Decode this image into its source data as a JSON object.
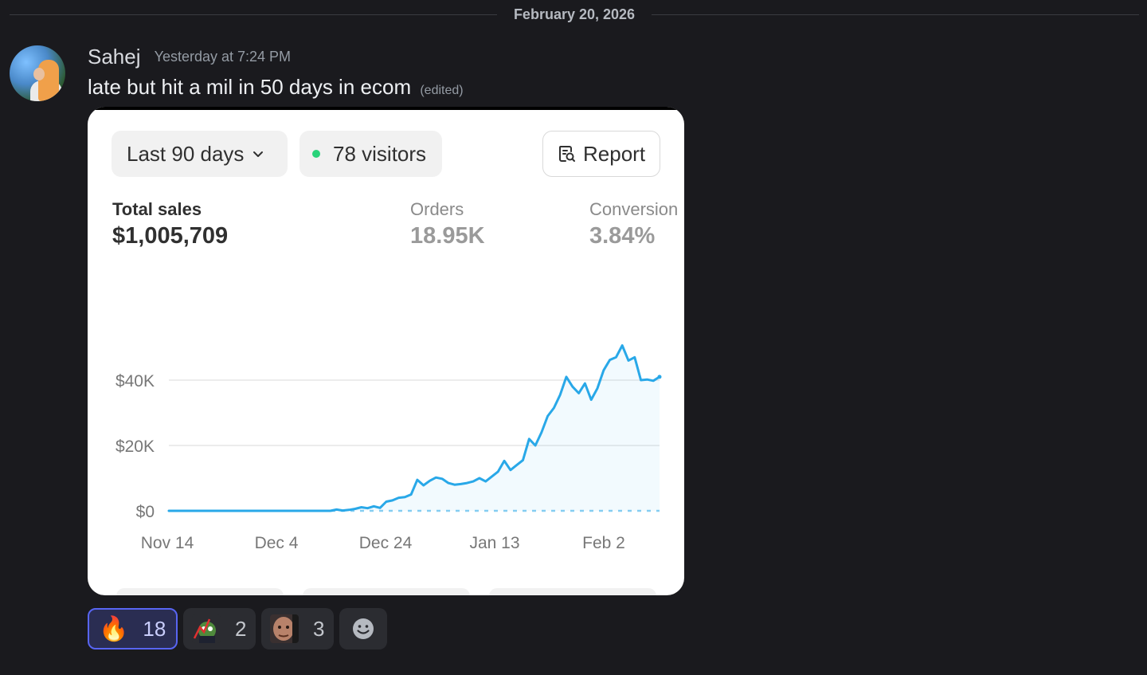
{
  "date_divider": "February 20, 2026",
  "message": {
    "author": "Sahej",
    "timestamp": "Yesterday at 7:24 PM",
    "text": "late but hit a mil in 50 days in ecom",
    "edited_label": "(edited)"
  },
  "dashboard": {
    "range_label": "Last 90 days",
    "visitors_label": "78 visitors",
    "report_label": "Report",
    "metrics": [
      {
        "label": "Total sales",
        "value": "$1,005,709"
      },
      {
        "label": "Orders",
        "value": "18.95K"
      },
      {
        "label": "Conversion",
        "value": "3.84%"
      }
    ]
  },
  "chart_data": {
    "type": "area",
    "x_tick_labels": [
      "Nov 14",
      "Dec 4",
      "Dec 24",
      "Jan 13",
      "Feb 2"
    ],
    "y_tick_labels": [
      "$0",
      "$20K",
      "$40K"
    ],
    "ylim": [
      0,
      40000
    ],
    "grid": true,
    "series": [
      {
        "values": [
          0,
          0,
          0,
          0,
          0,
          0,
          0,
          0,
          0,
          0,
          0,
          0,
          0,
          0,
          0,
          0,
          0,
          0,
          0,
          0,
          0,
          0,
          0,
          0,
          0,
          0,
          0,
          400,
          100,
          300,
          600,
          1100,
          800,
          1400,
          900,
          2800,
          3200,
          4000,
          4200,
          5000,
          9500,
          7800,
          9200,
          10200,
          9800,
          8500,
          8000,
          8200,
          8500,
          9000,
          10000,
          9000,
          10500,
          12000,
          15300,
          12500,
          14000,
          15500,
          22000,
          20000,
          24000,
          29000,
          31500,
          35500,
          41000,
          38000,
          36000,
          39000,
          34000,
          37500,
          43000,
          46200,
          47000,
          50600,
          46000,
          47000,
          40000,
          40200,
          39800,
          41000
        ],
        "color": "#29a8e8"
      }
    ],
    "baseline_series_color": "#29a8e8"
  },
  "reactions": [
    {
      "emoji": "fire-emoji",
      "glyph": "🔥",
      "count": "18",
      "active": true
    },
    {
      "emoji": "pepe-stonks-emoji",
      "count": "2",
      "active": false
    },
    {
      "emoji": "rock-eyebrow-emoji",
      "count": "3",
      "active": false
    },
    {
      "emoji": "add-reaction-icon",
      "count": "",
      "active": false
    }
  ]
}
